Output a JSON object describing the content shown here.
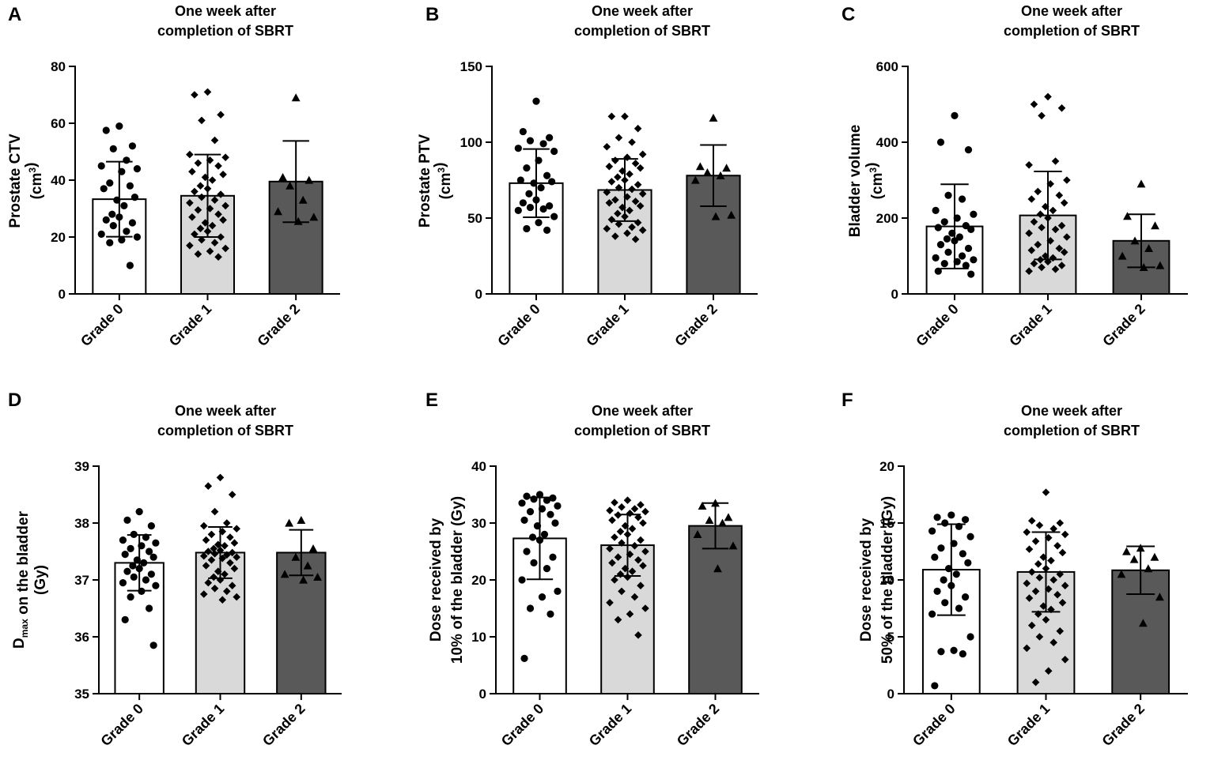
{
  "figure": {
    "bar_fills": [
      "#ffffff",
      "#d9d9d9",
      "#595959"
    ],
    "stroke_color": "#000000"
  },
  "chart_data": [
    {
      "panel": "A",
      "type": "bar",
      "title": [
        "One week after",
        "completion of SBRT"
      ],
      "ylabel_lines": [
        [
          "Prostate CTV"
        ],
        [
          "(cm",
          {
            "sup": "3"
          },
          ")"
        ]
      ],
      "xlabel": "",
      "categories": [
        "Grade 0",
        "Grade 1",
        "Grade 2"
      ],
      "ylim": [
        0,
        80
      ],
      "yticks": [
        0,
        20,
        40,
        60,
        80
      ],
      "means": [
        33.3,
        34.5,
        39.5
      ],
      "sd": [
        13.2,
        14.5,
        14.3
      ],
      "marker": [
        "circle",
        "diamond",
        "triangle"
      ],
      "points": [
        [
          59,
          57.5,
          52,
          51,
          47,
          45,
          44,
          43,
          39,
          38,
          37,
          34,
          33,
          31,
          28,
          27,
          26,
          25,
          24,
          22,
          21,
          20,
          19,
          18,
          10
        ],
        [
          71,
          70,
          63,
          61,
          54,
          49,
          48,
          47,
          46,
          45,
          43,
          42,
          41,
          40,
          38,
          37,
          36,
          35,
          34,
          33,
          32,
          31,
          30,
          29.5,
          28,
          27,
          26,
          25,
          24,
          23,
          22,
          21,
          20,
          19,
          18,
          17,
          16,
          15,
          14,
          13
        ],
        [
          69,
          41,
          40,
          38,
          33,
          29,
          27,
          25.5
        ]
      ]
    },
    {
      "panel": "B",
      "type": "bar",
      "title": [
        "One week after",
        "completion of SBRT"
      ],
      "ylabel_lines": [
        [
          "Prostate PTV"
        ],
        [
          "(cm",
          {
            "sup": "3"
          },
          ")"
        ]
      ],
      "xlabel": "",
      "categories": [
        "Grade 0",
        "Grade 1",
        "Grade 2"
      ],
      "ylim": [
        0,
        150
      ],
      "yticks": [
        0,
        50,
        100,
        150
      ],
      "means": [
        73,
        68.5,
        78
      ],
      "sd": [
        22.5,
        20.5,
        20.2
      ],
      "marker": [
        "circle",
        "diamond",
        "triangle"
      ],
      "points": [
        [
          127,
          107,
          103,
          101,
          99,
          96,
          94,
          88,
          83,
          78,
          75,
          74,
          73,
          70,
          66,
          62,
          60,
          58,
          57,
          56,
          55,
          51,
          47,
          43,
          42
        ],
        [
          117,
          117,
          109,
          103,
          100,
          97,
          92,
          90,
          88,
          86,
          84,
          83,
          81,
          79,
          77,
          75,
          74,
          72,
          70,
          69,
          67,
          66,
          64,
          62,
          61,
          60,
          58,
          57,
          55,
          53,
          51,
          49,
          47,
          46,
          44,
          43,
          42,
          40,
          38,
          36
        ],
        [
          116,
          84,
          83,
          80,
          78,
          75,
          52,
          51
        ]
      ]
    },
    {
      "panel": "C",
      "type": "bar",
      "title": [
        "One week after",
        "completion of SBRT"
      ],
      "ylabel_lines": [
        [
          "Bladder volume"
        ],
        [
          "(cm",
          {
            "sup": "3"
          },
          ")"
        ]
      ],
      "xlabel": "",
      "categories": [
        "Grade 0",
        "Grade 1",
        "Grade 2"
      ],
      "ylim": [
        0,
        600
      ],
      "yticks": [
        0,
        200,
        400,
        600
      ],
      "means": [
        178,
        207,
        140
      ],
      "sd": [
        111,
        116,
        70
      ],
      "marker": [
        "circle",
        "diamond",
        "triangle"
      ],
      "points": [
        [
          470,
          400,
          380,
          260,
          250,
          220,
          210,
          200,
          190,
          180,
          175,
          170,
          160,
          150,
          145,
          140,
          130,
          120,
          110,
          100,
          95,
          90,
          85,
          80,
          75,
          60,
          52
        ],
        [
          520,
          500,
          490,
          470,
          350,
          340,
          300,
          290,
          270,
          260,
          250,
          240,
          230,
          220,
          210,
          200,
          190,
          180,
          175,
          170,
          160,
          150,
          140,
          130,
          120,
          115,
          110,
          100,
          95,
          90,
          85,
          80,
          75,
          70,
          65,
          60
        ],
        [
          290,
          205,
          180,
          140,
          120,
          100,
          75,
          70
        ]
      ]
    },
    {
      "panel": "D",
      "type": "bar",
      "title": [
        "One week after",
        "completion of SBRT"
      ],
      "ylabel_lines": [
        [
          {
            "text": "D"
          },
          {
            "sub": "max"
          },
          {
            "text": " on the bladder"
          }
        ],
        [
          "(Gy)"
        ]
      ],
      "xlabel": "",
      "categories": [
        "Grade 0",
        "Grade 1",
        "Grade 2"
      ],
      "ylim": [
        35,
        39
      ],
      "yticks": [
        35,
        36,
        37,
        38,
        39
      ],
      "means": [
        37.3,
        37.48,
        37.48
      ],
      "sd": [
        0.49,
        0.45,
        0.4
      ],
      "marker": [
        "circle",
        "diamond",
        "triangle"
      ],
      "points": [
        [
          38.2,
          38.05,
          37.95,
          37.8,
          37.75,
          37.7,
          37.65,
          37.6,
          37.55,
          37.5,
          37.45,
          37.4,
          37.35,
          37.3,
          37.25,
          37.2,
          37.15,
          37.1,
          37.05,
          37.0,
          36.95,
          36.9,
          36.8,
          36.7,
          36.5,
          36.3,
          35.85
        ],
        [
          38.8,
          38.65,
          38.5,
          38.2,
          38.0,
          37.95,
          37.9,
          37.85,
          37.8,
          37.75,
          37.7,
          37.65,
          37.62,
          37.6,
          37.55,
          37.52,
          37.5,
          37.48,
          37.46,
          37.44,
          37.42,
          37.4,
          37.38,
          37.35,
          37.3,
          37.25,
          37.2,
          37.15,
          37.1,
          37.05,
          37.0,
          36.95,
          36.9,
          36.85,
          36.8,
          36.75,
          36.7,
          36.65
        ],
        [
          38.05,
          38.0,
          37.55,
          37.4,
          37.25,
          37.1,
          37.05,
          37.0
        ]
      ]
    },
    {
      "panel": "E",
      "type": "bar",
      "title": [
        "One week after",
        "completion of SBRT"
      ],
      "ylabel_lines": [
        [
          "Dose received by"
        ],
        [
          "10% of the bladder (Gy)"
        ]
      ],
      "xlabel": "",
      "categories": [
        "Grade 0",
        "Grade 1",
        "Grade 2"
      ],
      "ylim": [
        0,
        40
      ],
      "yticks": [
        0,
        10,
        20,
        30,
        40
      ],
      "means": [
        27.3,
        26.1,
        29.5
      ],
      "sd": [
        7.2,
        5.4,
        4.0
      ],
      "marker": [
        "circle",
        "diamond",
        "triangle"
      ],
      "points": [
        [
          35,
          34.7,
          34.4,
          34.2,
          34,
          33.5,
          33,
          32.5,
          32,
          31.5,
          30.5,
          30,
          29.5,
          28,
          27.5,
          27,
          25,
          24,
          23,
          22,
          20,
          18,
          17,
          15,
          14,
          6.2
        ],
        [
          34,
          33.6,
          33.2,
          32.8,
          32.5,
          32.2,
          32,
          31.7,
          31.4,
          31,
          30.5,
          30,
          29.5,
          29,
          28.5,
          28,
          27.5,
          27,
          26.5,
          26,
          25.5,
          25,
          24.5,
          24,
          23.5,
          23,
          22.5,
          22,
          21.5,
          21,
          20.5,
          20,
          19,
          18,
          17,
          16,
          15,
          14,
          13,
          10.3
        ],
        [
          33.5,
          33,
          31,
          30.5,
          30,
          28,
          26,
          22
        ]
      ]
    },
    {
      "panel": "F",
      "type": "bar",
      "title": [
        "One week after",
        "completion of SBRT"
      ],
      "ylabel_lines": [
        [
          "Dose received by"
        ],
        [
          "50% of the bladder (Gy)"
        ]
      ],
      "xlabel": "",
      "categories": [
        "Grade 0",
        "Grade 1",
        "Grade 2"
      ],
      "ylim": [
        0,
        20
      ],
      "yticks": [
        0,
        5,
        10,
        15,
        20
      ],
      "means": [
        10.9,
        10.7,
        10.85
      ],
      "sd": [
        4.0,
        3.5,
        2.1
      ],
      "marker": [
        "circle",
        "diamond",
        "triangle"
      ],
      "points": [
        [
          15.7,
          15.5,
          15.3,
          15,
          14.7,
          14.3,
          13.8,
          13.2,
          12.8,
          12.3,
          12,
          11.5,
          11,
          10.5,
          10,
          9.5,
          9,
          8.5,
          8,
          7.5,
          7,
          5,
          3.8,
          3.7,
          3.5,
          0.7
        ],
        [
          17.7,
          15.2,
          15,
          14.8,
          14.5,
          14.2,
          14,
          13.7,
          13.4,
          13,
          12.7,
          12.4,
          12,
          11.7,
          11.4,
          11,
          10.7,
          10.5,
          10.2,
          10,
          9.7,
          9.5,
          9.2,
          9,
          8.7,
          8.4,
          8,
          7.7,
          7.4,
          7,
          6.5,
          6,
          5.5,
          5,
          4.5,
          4,
          3,
          2,
          1
        ],
        [
          12.8,
          12.5,
          12,
          11.8,
          11,
          10.5,
          8.5,
          6.2
        ]
      ]
    }
  ]
}
